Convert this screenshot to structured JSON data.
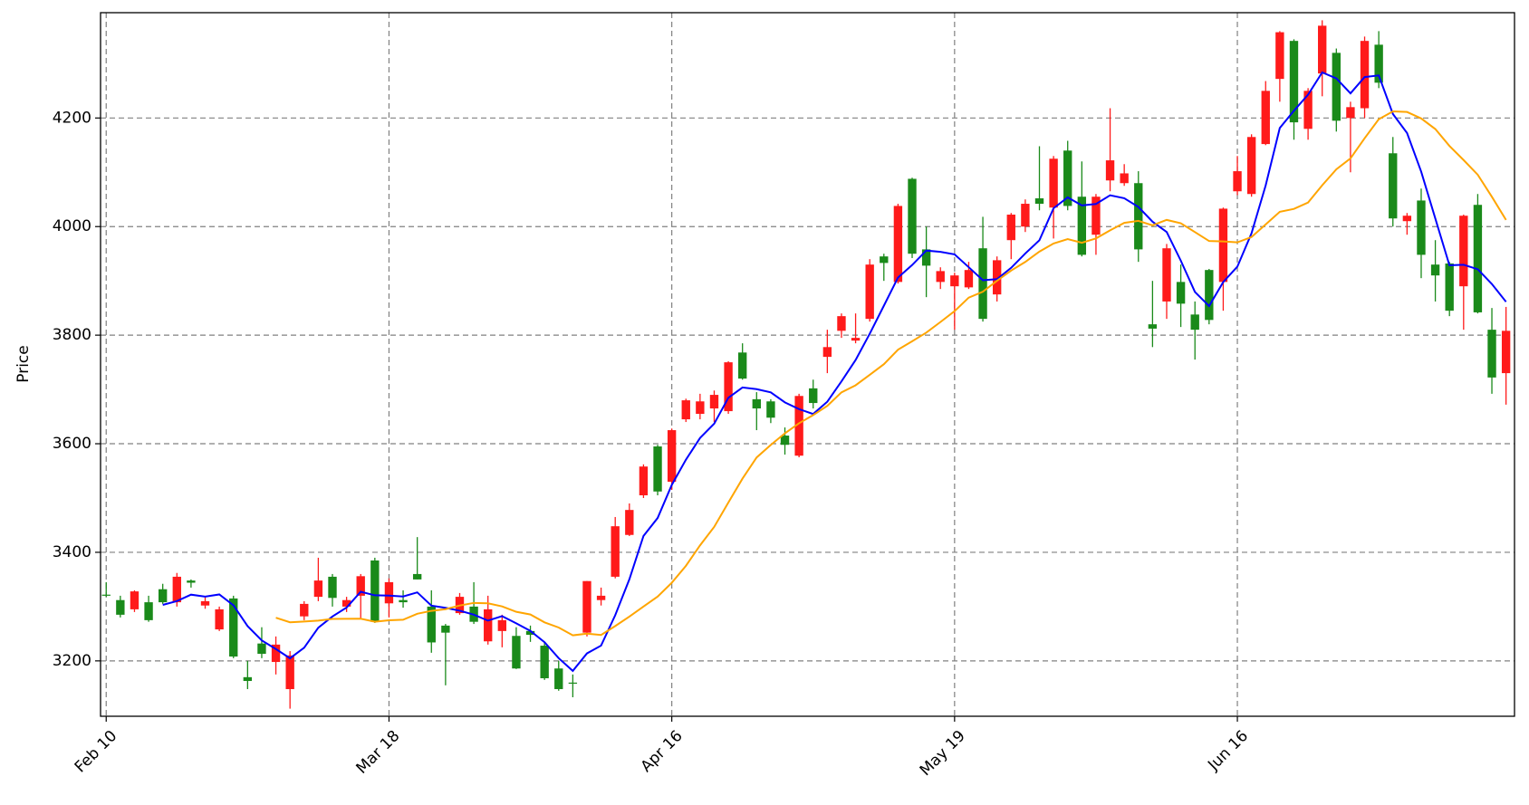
{
  "chart_data": {
    "type": "candlestick",
    "y_label": "Price",
    "xlim": [
      -0.4,
      99.6
    ],
    "xticks": [
      {
        "value": 0,
        "label": "Feb 10"
      },
      {
        "value": 20,
        "label": "Mar 18"
      },
      {
        "value": 40,
        "label": "Apr 16"
      },
      {
        "value": 60,
        "label": "May 19"
      },
      {
        "value": 80,
        "label": "Jun 16"
      }
    ],
    "ylim": [
      3098,
      4394
    ],
    "yticks": [
      3200,
      3400,
      3600,
      3800,
      4000,
      4200
    ],
    "grid": true,
    "up_color": "#ff1a1a",
    "down_color": "#1a8a1a",
    "open": [
      3322,
      3312,
      3295,
      3308,
      3332,
      3308,
      3348,
      3302,
      3258,
      3315,
      3170,
      3232,
      3198,
      3148,
      3282,
      3318,
      3355,
      3300,
      3320,
      3385,
      3306,
      3312,
      3360,
      3300,
      3265,
      3288,
      3300,
      3236,
      3255,
      3246,
      3255,
      3228,
      3186,
      3160,
      3252,
      3312,
      3355,
      3432,
      3505,
      3595,
      3530,
      3645,
      3655,
      3665,
      3660,
      3768,
      3682,
      3678,
      3615,
      3578,
      3702,
      3760,
      3808,
      3790,
      3830,
      3945,
      3898,
      4088,
      3958,
      3898,
      3890,
      3888,
      3960,
      3875,
      3975,
      4000,
      4052,
      4035,
      4140,
      4055,
      3985,
      4085,
      4080,
      4080,
      3820,
      3862,
      3898,
      3838,
      3920,
      3898,
      4065,
      4060,
      4152,
      4272,
      4342,
      4180,
      4282,
      4320,
      4200,
      4218,
      4335,
      4135,
      4010,
      4048,
      3930,
      3932,
      3890,
      4040,
      3810,
      3730
    ],
    "high": [
      3345,
      3320,
      3330,
      3320,
      3342,
      3362,
      3350,
      3318,
      3300,
      3320,
      3200,
      3262,
      3245,
      3218,
      3310,
      3390,
      3360,
      3318,
      3360,
      3390,
      3352,
      3330,
      3428,
      3330,
      3268,
      3325,
      3345,
      3320,
      3285,
      3262,
      3265,
      3235,
      3200,
      3175,
      3347,
      3335,
      3465,
      3490,
      3562,
      3598,
      3628,
      3683,
      3692,
      3698,
      3752,
      3785,
      3695,
      3682,
      3630,
      3692,
      3718,
      3810,
      3840,
      3840,
      3940,
      3950,
      4042,
      4090,
      4000,
      3925,
      3915,
      3935,
      4018,
      3945,
      4025,
      4050,
      4148,
      4130,
      4158,
      4120,
      4060,
      4218,
      4115,
      4102,
      3900,
      3968,
      3930,
      3862,
      3922,
      4035,
      4130,
      4170,
      4268,
      4360,
      4345,
      4255,
      4380,
      4328,
      4230,
      4350,
      4360,
      4165,
      4025,
      4070,
      3975,
      3935,
      4022,
      4060,
      3850,
      3852
    ],
    "low": [
      3318,
      3280,
      3290,
      3272,
      3305,
      3300,
      3335,
      3296,
      3255,
      3205,
      3148,
      3205,
      3175,
      3112,
      3275,
      3310,
      3300,
      3290,
      3278,
      3270,
      3280,
      3298,
      3350,
      3215,
      3155,
      3285,
      3268,
      3230,
      3225,
      3185,
      3235,
      3165,
      3145,
      3133,
      3245,
      3302,
      3352,
      3430,
      3500,
      3505,
      3515,
      3640,
      3645,
      3640,
      3655,
      3718,
      3625,
      3638,
      3580,
      3575,
      3665,
      3730,
      3795,
      3785,
      3825,
      3900,
      3895,
      3942,
      3870,
      3885,
      3810,
      3885,
      3825,
      3862,
      3940,
      3990,
      4030,
      3978,
      4030,
      3945,
      3948,
      4065,
      4075,
      3935,
      3778,
      3830,
      3815,
      3755,
      3820,
      3845,
      4058,
      4055,
      4150,
      4230,
      4160,
      4160,
      4240,
      4175,
      4100,
      4200,
      4255,
      4000,
      3985,
      3905,
      3862,
      3835,
      3810,
      3840,
      3692,
      3672
    ],
    "close": [
      3320,
      3285,
      3328,
      3275,
      3308,
      3355,
      3344,
      3310,
      3295,
      3208,
      3163,
      3213,
      3230,
      3210,
      3305,
      3348,
      3316,
      3312,
      3356,
      3272,
      3345,
      3308,
      3350,
      3234,
      3252,
      3318,
      3272,
      3295,
      3275,
      3186,
      3248,
      3168,
      3148,
      3158,
      3347,
      3320,
      3448,
      3478,
      3558,
      3512,
      3625,
      3680,
      3678,
      3690,
      3750,
      3720,
      3665,
      3648,
      3598,
      3688,
      3675,
      3778,
      3835,
      3795,
      3930,
      3933,
      4038,
      3950,
      3928,
      3918,
      3910,
      3920,
      3830,
      3938,
      4022,
      4042,
      4042,
      4125,
      4038,
      3948,
      4055,
      4122,
      4098,
      3958,
      3812,
      3960,
      3858,
      3810,
      3828,
      4033,
      4102,
      4165,
      4250,
      4358,
      4192,
      4250,
      4370,
      4195,
      4220,
      4342,
      4265,
      4015,
      4020,
      3948,
      3910,
      3845,
      4020,
      3842,
      3722,
      3808
    ],
    "moving_averages": [
      {
        "color": "#0000ff",
        "values": [
          null,
          null,
          null,
          null,
          3303.2,
          3310.2,
          3322,
          3318.4,
          3322.4,
          3302.4,
          3264,
          3237.8,
          3221.8,
          3204.8,
          3224.2,
          3261.2,
          3281.8,
          3298.2,
          3327.4,
          3320.8,
          3320.2,
          3318.6,
          3326.2,
          3301.8,
          3297.8,
          3292.4,
          3285.2,
          3274.2,
          3282.4,
          3269.2,
          3255.2,
          3234.4,
          3205,
          3181.6,
          3213.8,
          3228.2,
          3284.2,
          3350.2,
          3430.2,
          3463.2,
          3524.2,
          3570.6,
          3610.6,
          3637,
          3684.6,
          3703.6,
          3700.6,
          3694.6,
          3676.2,
          3663.8,
          3654.8,
          3677.4,
          3714.8,
          3754.2,
          3802.6,
          3854.2,
          3906.2,
          3929.2,
          3955.8,
          3953.4,
          3948.8,
          3925.2,
          3901.2,
          3903.2,
          3924,
          3950.4,
          3974.8,
          4033.8,
          4053.8,
          4039,
          4041.6,
          4057.6,
          4052.2,
          4036.2,
          4009,
          3990,
          3937.2,
          3879.6,
          3853.6,
          3897.8,
          3926.2,
          3987.6,
          4075.6,
          4181.6,
          4213.4,
          4243,
          4284,
          4273,
          4245.4,
          4275.4,
          4278.4,
          4207.4,
          4172.4,
          4101.2,
          4014.8,
          3928.6,
          3929.6,
          3921.4,
          3894.2,
          3861.4
        ]
      },
      {
        "color": "#ffa500",
        "values": [
          null,
          null,
          null,
          null,
          null,
          null,
          null,
          null,
          null,
          null,
          null,
          null,
          3279.5,
          3271.1,
          3272.6,
          3274.2,
          3277.3,
          3277.6,
          3277.7,
          3272.2,
          3274.8,
          3275.8,
          3286.8,
          3292.2,
          3295.2,
          3302,
          3306.8,
          3306,
          3300.4,
          3290.4,
          3285.5,
          3271,
          3261.5,
          3247.1,
          3250.1,
          3247.8,
          3264.2,
          3281.6,
          3300.1,
          3318.5,
          3343.9,
          3375.1,
          3412.9,
          3446.9,
          3491.7,
          3535.7,
          3574.7,
          3597.8,
          3619.2,
          3637.7,
          3652.8,
          3669.8,
          3694.6,
          3707.7,
          3726.9,
          3746.5,
          3773.3,
          3788.7,
          3804.7,
          3824.2,
          3844.3,
          3869.1,
          3880,
          3900.2,
          3919,
          3934.9,
          3953.9,
          3968.9,
          3977,
          3970.1,
          3978.2,
          3993.1,
          4006.9,
          4010.6,
          4002.3,
          4012.3,
          4006.2,
          3989.8,
          3973.4,
          3972.7,
          3970.9,
          3980.7,
          4003.9,
          4027.2,
          4032.6,
          4044.3,
          4076,
          4105.5,
          4125.5,
          4162.7,
          4197.7,
          4212.1,
          4211.1,
          4199.2,
          4179.6,
          4148.5,
          4122.5,
          4095.5,
          4054.9,
          4012.2
        ]
      }
    ]
  }
}
